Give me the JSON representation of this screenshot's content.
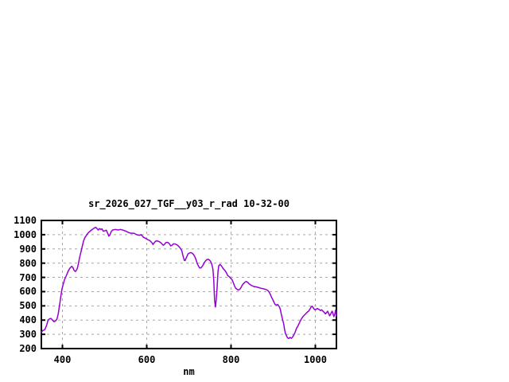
{
  "chart_data": {
    "type": "line",
    "title": "sr_2026_027_TGF__y03_r_rad 10-32-00",
    "xlabel": "nm",
    "ylabel": "",
    "xlim": [
      350,
      1050
    ],
    "ylim": [
      200,
      1100
    ],
    "x_ticks": [
      400,
      600,
      800,
      1000
    ],
    "y_ticks": [
      200,
      300,
      400,
      500,
      600,
      700,
      800,
      900,
      1000,
      1100
    ],
    "grid": true,
    "legend": "none",
    "colors": {
      "line": "#9400d3",
      "grid": "#a8a8a8",
      "frame": "#000000",
      "background": "#ffffff"
    },
    "series": [
      {
        "name": "sr_2026_027_TGF__y03_r_rad",
        "x": [
          350,
          354,
          358,
          362,
          366,
          370,
          373,
          377,
          380,
          383,
          387,
          390,
          393,
          396,
          399,
          402,
          405,
          410,
          414,
          418,
          422,
          425,
          428,
          431,
          435,
          438,
          441,
          444,
          447,
          450,
          453,
          457,
          460,
          463,
          469,
          475,
          479,
          482,
          485,
          488,
          491,
          494,
          497,
          501,
          504,
          507,
          510,
          513,
          516,
          519,
          526,
          532,
          538,
          544,
          551,
          557,
          563,
          570,
          576,
          582,
          587,
          592,
          596,
          600,
          604,
          608,
          612,
          615,
          618,
          621,
          624,
          627,
          630,
          633,
          636,
          639,
          642,
          645,
          648,
          651,
          654,
          657,
          660,
          663,
          667,
          670,
          673,
          676,
          679,
          683,
          686,
          689,
          691,
          693,
          696,
          698,
          701,
          704,
          708,
          711,
          714,
          717,
          720,
          723,
          726,
          729,
          733,
          736,
          739,
          742,
          745,
          748,
          751,
          754,
          757,
          759,
          761,
          763,
          765,
          767,
          769,
          771,
          774,
          777,
          780,
          783,
          786,
          789,
          792,
          796,
          799,
          802,
          805,
          808,
          811,
          814,
          817,
          821,
          824,
          827,
          830,
          833,
          836,
          839,
          842,
          846,
          849,
          852,
          855,
          858,
          864,
          871,
          877,
          883,
          886,
          889,
          892,
          896,
          899,
          902,
          905,
          908,
          911,
          913,
          915,
          917,
          919,
          922,
          925,
          927,
          929,
          932,
          934,
          937,
          940,
          943,
          946,
          949,
          952,
          955,
          959,
          962,
          965,
          968,
          971,
          974,
          977,
          980,
          984,
          987,
          990,
          992,
          994,
          996,
          999,
          1002,
          1005,
          1008,
          1012,
          1015,
          1018,
          1021,
          1024,
          1027,
          1029,
          1032,
          1034,
          1036,
          1038,
          1040,
          1042,
          1044,
          1046,
          1048,
          1050
        ],
        "y": [
          315,
          328,
          332,
          360,
          400,
          410,
          411,
          398,
          389,
          393,
          407,
          444,
          500,
          565,
          620,
          654,
          685,
          717,
          746,
          765,
          778,
          768,
          748,
          741,
          759,
          796,
          843,
          879,
          917,
          954,
          978,
          996,
          1009,
          1018,
          1033,
          1046,
          1052,
          1043,
          1033,
          1043,
          1037,
          1041,
          1024,
          1028,
          1032,
          1013,
          990,
          1000,
          1024,
          1033,
          1037,
          1033,
          1037,
          1032,
          1024,
          1015,
          1010,
          1010,
          1000,
          996,
          1000,
          982,
          976,
          970,
          963,
          957,
          944,
          931,
          944,
          954,
          957,
          954,
          950,
          944,
          935,
          926,
          931,
          943,
          946,
          944,
          935,
          921,
          926,
          935,
          935,
          931,
          926,
          917,
          907,
          889,
          852,
          820,
          818,
          833,
          852,
          865,
          870,
          874,
          870,
          861,
          846,
          824,
          796,
          778,
          765,
          768,
          783,
          801,
          815,
          824,
          828,
          824,
          815,
          796,
          759,
          676,
          540,
          492,
          546,
          630,
          741,
          782,
          791,
          782,
          768,
          756,
          746,
          732,
          713,
          704,
          694,
          685,
          667,
          643,
          624,
          617,
          611,
          617,
          630,
          648,
          657,
          667,
          671,
          667,
          657,
          648,
          643,
          639,
          635,
          635,
          630,
          624,
          620,
          615,
          611,
          602,
          588,
          561,
          543,
          524,
          509,
          506,
          509,
          500,
          491,
          475,
          444,
          407,
          371,
          333,
          306,
          287,
          276,
          271,
          278,
          272,
          281,
          296,
          315,
          339,
          361,
          380,
          398,
          413,
          426,
          435,
          444,
          454,
          463,
          476,
          492,
          498,
          491,
          482,
          472,
          476,
          482,
          476,
          468,
          472,
          463,
          455,
          444,
          454,
          463,
          444,
          430,
          440,
          454,
          462,
          444,
          424,
          440,
          470,
          430
        ]
      }
    ]
  }
}
